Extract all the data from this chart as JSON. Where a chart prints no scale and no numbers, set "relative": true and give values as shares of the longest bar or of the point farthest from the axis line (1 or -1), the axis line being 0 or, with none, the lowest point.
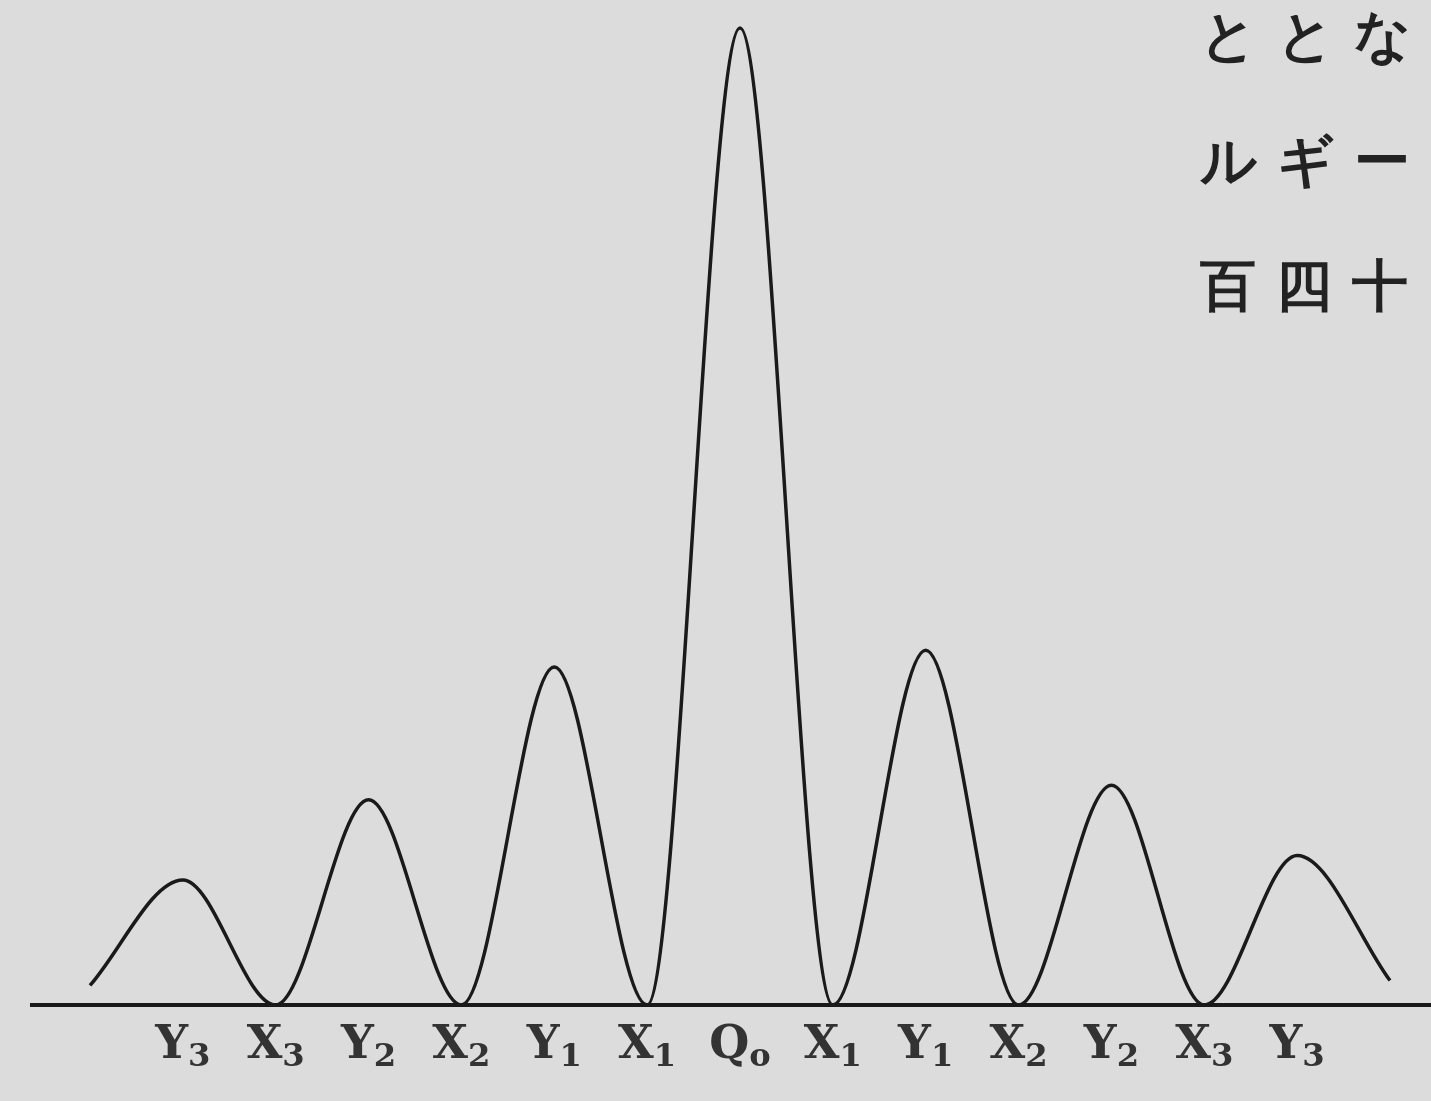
{
  "chart_data": {
    "type": "line",
    "relative": true,
    "color": "#1a1a1a",
    "categories": [
      null,
      "Y$_{3}$",
      "X$_{3}$",
      "Y$_{2}$",
      "X$_{2}$",
      "Y$_{1}$",
      "X$_{1}$",
      "Q$_{o}$",
      "X$_{1}$",
      "Y$_{1}$",
      "X$_{2}$",
      "Y$_{2}$",
      "X$_{3}$",
      "Y$_{3}$",
      null
    ],
    "values": [
      0.02,
      0.128,
      0,
      0.21,
      0,
      0.346,
      0,
      1,
      0,
      0.363,
      0,
      0.225,
      0,
      0.153,
      0.025
    ],
    "annotations": [
      "ととな",
      "ルギー",
      "百四十"
    ]
  }
}
